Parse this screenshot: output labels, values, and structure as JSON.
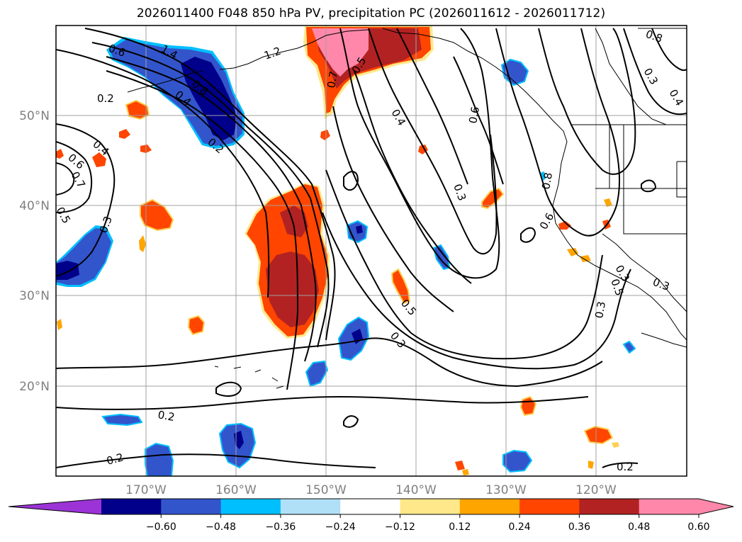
{
  "title": "2026011400 F048 850 hPa PV, precipitation PC (2026011612 - 2026011712)",
  "map": {
    "lat_labels": [
      "50°N",
      "40°N",
      "30°N",
      "20°N"
    ],
    "lon_labels": [
      "170°W",
      "160°W",
      "150°W",
      "140°W",
      "130°W",
      "120°W"
    ],
    "contour_labels": [
      "0.6",
      "1.4",
      "1.2",
      "0.8",
      "0.4",
      "0.2",
      "0.2",
      "0.4",
      "0.6",
      "0.7",
      "0.5",
      "0.3",
      "0.7",
      "0.5",
      "0.4",
      "0.6",
      "0.3",
      "0.8",
      "0.8",
      "0.3",
      "0.4",
      "0.5",
      "0.3",
      "0.3",
      "0.5",
      "0.6",
      "0.3",
      "0.3",
      "0.2",
      "0.2",
      "0.2"
    ]
  },
  "colorbar": {
    "ticks": [
      "−0.60",
      "−0.48",
      "−0.36",
      "−0.24",
      "−0.12",
      "0.12",
      "0.24",
      "0.36",
      "0.48",
      "0.60"
    ],
    "colors": [
      "#9b33d6",
      "#00008b",
      "#3355cc",
      "#00bfff",
      "#b0e0f8",
      "#ffffff",
      "#ffe88a",
      "#ffa500",
      "#ff4500",
      "#b22222",
      "#ff88aa",
      "#ff88aa"
    ]
  }
}
